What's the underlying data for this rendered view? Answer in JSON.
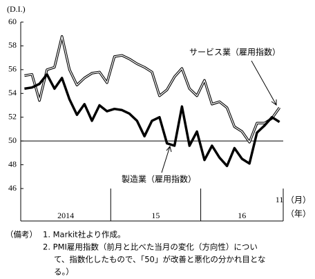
{
  "chart_data": {
    "type": "line",
    "y_unit_label": "(D.I.)",
    "categories": [
      null,
      null,
      null,
      null,
      null,
      null,
      null,
      null,
      null,
      null,
      null,
      null,
      null,
      null,
      null,
      null,
      null,
      null,
      null,
      null,
      null,
      null,
      null,
      null,
      null,
      null,
      null,
      null,
      null,
      null,
      null,
      null,
      null,
      null,
      "11"
    ],
    "year_labels": [
      "2014",
      "15",
      "16"
    ],
    "month_axis_label": "（月）",
    "year_axis_label": "（年）",
    "series": [
      {
        "name": "サービス業（雇用指数）",
        "color": "#ffffff",
        "outline": "#000000",
        "values": [
          55.5,
          55.6,
          53.4,
          56.0,
          56.2,
          58.8,
          56.0,
          54.7,
          55.3,
          55.7,
          55.8,
          54.9,
          57.1,
          57.2,
          56.9,
          56.5,
          56.2,
          55.8,
          53.8,
          54.3,
          55.4,
          56.1,
          54.4,
          53.8,
          55.1,
          53.1,
          53.3,
          52.8,
          51.2,
          50.8,
          49.9,
          51.5,
          51.5,
          51.9,
          52.8
        ]
      },
      {
        "name": "製造業（雇用指数）",
        "color": "#000000",
        "values": [
          54.4,
          54.5,
          54.8,
          55.6,
          54.4,
          55.3,
          53.5,
          52.2,
          53.1,
          51.7,
          53.0,
          52.5,
          52.7,
          52.6,
          52.3,
          51.7,
          50.4,
          51.7,
          52.0,
          49.8,
          49.6,
          52.9,
          49.6,
          50.8,
          48.4,
          49.6,
          48.6,
          47.9,
          49.4,
          48.5,
          48.1,
          50.7,
          51.3,
          52.0,
          51.6
        ]
      }
    ],
    "reference_line": 50,
    "ylim": [
      46,
      60
    ],
    "yticks": [
      46,
      48,
      50,
      52,
      54,
      56,
      58,
      60
    ],
    "notes": {
      "heading": "（備考）",
      "lines": [
        "1.  Markit社より作成。",
        "2.  PMI雇用指数（前月と比べた当月の変化（方向性）につい",
        "て、指数化したもので、「50」が改善と悪化の分かれ目とな",
        "る。）"
      ]
    }
  }
}
